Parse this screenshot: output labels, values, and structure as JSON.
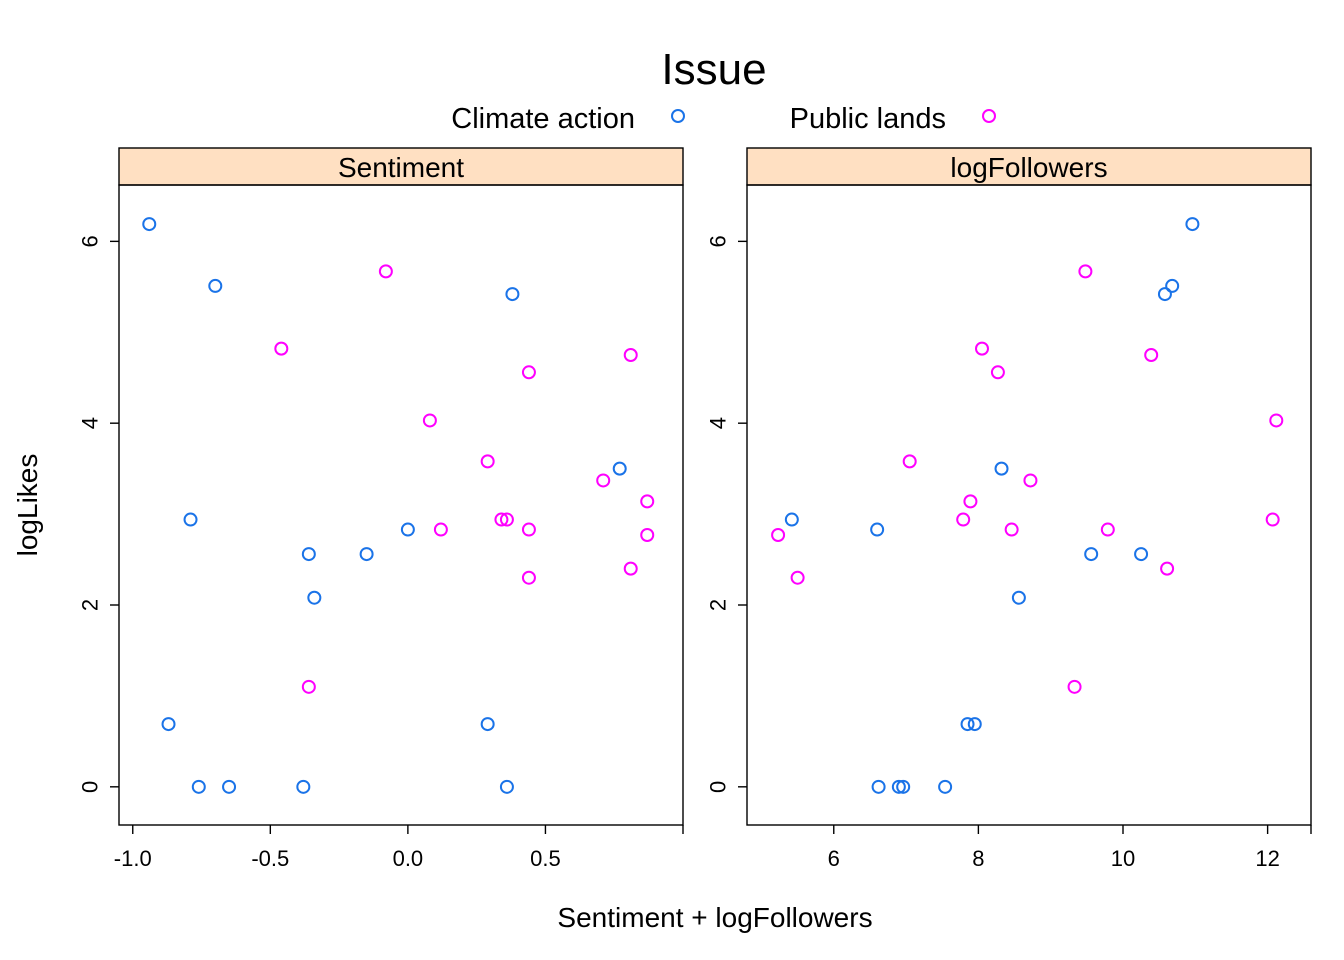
{
  "chart_data": {
    "type": "scatter",
    "title": "Issue",
    "xlabel": "Sentiment + logFollowers",
    "ylabel": "logLikes",
    "legend_placement": "top",
    "series": [
      {
        "name": "Climate action",
        "color": "#1a73e8"
      },
      {
        "name": "Public lands",
        "color": "#ff00ff"
      }
    ],
    "panels": [
      {
        "strip": "Sentiment",
        "strip_color": "#ffe0c2",
        "xlim": [
          -1.05,
          1.0
        ],
        "ylim": [
          -0.42,
          6.62
        ],
        "xticks": [
          -1.0,
          -0.5,
          0.0,
          0.5
        ],
        "xtick_labels": [
          "-1.0",
          "-0.5",
          "0.0",
          "0.5"
        ],
        "yticks": [
          0,
          2,
          4,
          6
        ],
        "ytick_labels": [
          "0",
          "2",
          "4",
          "6"
        ],
        "y_axis_side": "left",
        "points": [
          {
            "series": 0,
            "x": -0.94,
            "y": 6.19
          },
          {
            "series": 0,
            "x": -0.7,
            "y": 5.51
          },
          {
            "series": 0,
            "x": 0.38,
            "y": 5.42
          },
          {
            "series": 0,
            "x": 0.77,
            "y": 3.5
          },
          {
            "series": 0,
            "x": -0.79,
            "y": 2.94
          },
          {
            "series": 0,
            "x": 0.0,
            "y": 2.83
          },
          {
            "series": 0,
            "x": -0.36,
            "y": 2.56
          },
          {
            "series": 0,
            "x": -0.15,
            "y": 2.56
          },
          {
            "series": 0,
            "x": -0.34,
            "y": 2.08
          },
          {
            "series": 0,
            "x": -0.87,
            "y": 0.69
          },
          {
            "series": 0,
            "x": 0.29,
            "y": 0.69
          },
          {
            "series": 0,
            "x": -0.76,
            "y": 0.0
          },
          {
            "series": 0,
            "x": -0.65,
            "y": 0.0
          },
          {
            "series": 0,
            "x": -0.38,
            "y": 0.0
          },
          {
            "series": 0,
            "x": 0.36,
            "y": 0.0
          },
          {
            "series": 1,
            "x": -0.08,
            "y": 5.67
          },
          {
            "series": 1,
            "x": -0.46,
            "y": 4.82
          },
          {
            "series": 1,
            "x": 0.81,
            "y": 4.75
          },
          {
            "series": 1,
            "x": 0.44,
            "y": 4.56
          },
          {
            "series": 1,
            "x": 0.08,
            "y": 4.03
          },
          {
            "series": 1,
            "x": 0.29,
            "y": 3.58
          },
          {
            "series": 1,
            "x": 0.71,
            "y": 3.37
          },
          {
            "series": 1,
            "x": 0.87,
            "y": 3.14
          },
          {
            "series": 1,
            "x": 0.34,
            "y": 2.94
          },
          {
            "series": 1,
            "x": 0.36,
            "y": 2.94
          },
          {
            "series": 1,
            "x": 0.12,
            "y": 2.83
          },
          {
            "series": 1,
            "x": 0.44,
            "y": 2.83
          },
          {
            "series": 1,
            "x": 0.87,
            "y": 2.77
          },
          {
            "series": 1,
            "x": 0.81,
            "y": 2.4
          },
          {
            "series": 1,
            "x": 0.44,
            "y": 2.3
          },
          {
            "series": 1,
            "x": -0.36,
            "y": 1.1
          }
        ]
      },
      {
        "strip": "logFollowers",
        "strip_color": "#ffe0c2",
        "xlim": [
          4.8,
          12.6
        ],
        "ylim": [
          -0.42,
          6.62
        ],
        "xticks": [
          6,
          8,
          10,
          12
        ],
        "xtick_labels": [
          "6",
          "8",
          "10",
          "12"
        ],
        "yticks": [
          0,
          2,
          4,
          6
        ],
        "ytick_labels": [
          "0",
          "2",
          "4",
          "6"
        ],
        "y_axis_side": "left",
        "points": [
          {
            "series": 0,
            "x": 10.96,
            "y": 6.19
          },
          {
            "series": 0,
            "x": 10.68,
            "y": 5.51
          },
          {
            "series": 0,
            "x": 10.58,
            "y": 5.42
          },
          {
            "series": 0,
            "x": 8.32,
            "y": 3.5
          },
          {
            "series": 0,
            "x": 5.42,
            "y": 2.94
          },
          {
            "series": 0,
            "x": 6.6,
            "y": 2.83
          },
          {
            "series": 0,
            "x": 9.56,
            "y": 2.56
          },
          {
            "series": 0,
            "x": 10.25,
            "y": 2.56
          },
          {
            "series": 0,
            "x": 8.56,
            "y": 2.08
          },
          {
            "series": 0,
            "x": 7.85,
            "y": 0.69
          },
          {
            "series": 0,
            "x": 7.95,
            "y": 0.69
          },
          {
            "series": 0,
            "x": 6.62,
            "y": 0.0
          },
          {
            "series": 0,
            "x": 6.9,
            "y": 0.0
          },
          {
            "series": 0,
            "x": 6.96,
            "y": 0.0
          },
          {
            "series": 0,
            "x": 7.54,
            "y": 0.0
          },
          {
            "series": 1,
            "x": 9.48,
            "y": 5.67
          },
          {
            "series": 1,
            "x": 8.05,
            "y": 4.82
          },
          {
            "series": 1,
            "x": 10.39,
            "y": 4.75
          },
          {
            "series": 1,
            "x": 8.27,
            "y": 4.56
          },
          {
            "series": 1,
            "x": 12.12,
            "y": 4.03
          },
          {
            "series": 1,
            "x": 7.05,
            "y": 3.58
          },
          {
            "series": 1,
            "x": 8.72,
            "y": 3.37
          },
          {
            "series": 1,
            "x": 7.89,
            "y": 3.14
          },
          {
            "series": 1,
            "x": 7.79,
            "y": 2.94
          },
          {
            "series": 1,
            "x": 12.07,
            "y": 2.94
          },
          {
            "series": 1,
            "x": 8.46,
            "y": 2.83
          },
          {
            "series": 1,
            "x": 9.79,
            "y": 2.83
          },
          {
            "series": 1,
            "x": 5.23,
            "y": 2.77
          },
          {
            "series": 1,
            "x": 10.61,
            "y": 2.4
          },
          {
            "series": 1,
            "x": 5.5,
            "y": 2.3
          },
          {
            "series": 1,
            "x": 9.33,
            "y": 1.1
          }
        ]
      }
    ]
  }
}
